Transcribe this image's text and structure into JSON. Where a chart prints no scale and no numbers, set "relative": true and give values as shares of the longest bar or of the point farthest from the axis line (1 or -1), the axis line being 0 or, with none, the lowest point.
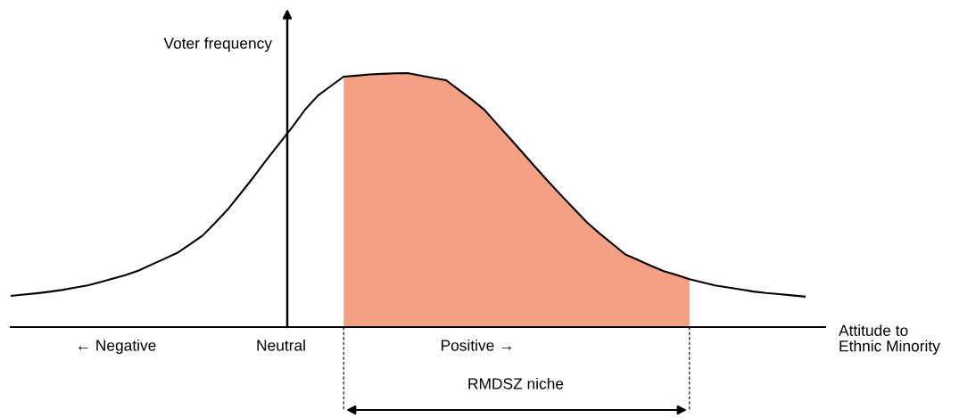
{
  "chart_data": {
    "type": "line",
    "relative": true,
    "xlabel": "Attitude to\nEthnic Minority",
    "ylabel": "Voter frequency",
    "categories": [
      null,
      null,
      null,
      null,
      null,
      null,
      null,
      null,
      null,
      null,
      null,
      null,
      null,
      null,
      null,
      null,
      null,
      null,
      null,
      null,
      null,
      null,
      null,
      null,
      null,
      null,
      null,
      null,
      null,
      null,
      null,
      null,
      null,
      null,
      null,
      null,
      null,
      null,
      null,
      null,
      null,
      null,
      null,
      null,
      null,
      null,
      null,
      null,
      null,
      null,
      null,
      null,
      null,
      null,
      null,
      null,
      null,
      null,
      null,
      null,
      null,
      null,
      null
    ],
    "series": [
      {
        "type": "area",
        "color": "#f4a084",
        "values": [
          null,
          null,
          null,
          null,
          null,
          null,
          null,
          null,
          null,
          null,
          null,
          null,
          null,
          null,
          null,
          null,
          null,
          null,
          null,
          null,
          null,
          null,
          null,
          null,
          null,
          null,
          0.986,
          0.99,
          0.995,
          0.997,
          0.999,
          1.0,
          0.99,
          0.981,
          0.972,
          0.934,
          0.896,
          0.855,
          0.798,
          0.742,
          0.685,
          0.628,
          0.572,
          0.518,
          0.465,
          0.412,
          0.368,
          0.327,
          0.286,
          0.264,
          0.241,
          0.22,
          0.205,
          0.189,
          null,
          null,
          null,
          null,
          null,
          null,
          null,
          null,
          null
        ]
      },
      {
        "color": "#000000",
        "values": [
          0.123,
          0.128,
          0.133,
          0.139,
          0.146,
          0.155,
          0.164,
          0.177,
          0.191,
          0.205,
          0.223,
          0.246,
          0.269,
          0.292,
          0.326,
          0.361,
          0.412,
          0.466,
          0.529,
          0.593,
          0.66,
          0.724,
          0.788,
          0.857,
          0.912,
          0.949,
          0.986,
          0.99,
          0.995,
          0.997,
          0.999,
          1.0,
          0.99,
          0.981,
          0.972,
          0.934,
          0.896,
          0.855,
          0.798,
          0.742,
          0.685,
          0.628,
          0.572,
          0.518,
          0.465,
          0.412,
          0.368,
          0.327,
          0.286,
          0.264,
          0.241,
          0.22,
          0.205,
          0.189,
          0.176,
          0.164,
          0.156,
          0.148,
          0.14,
          0.134,
          0.13,
          0.125,
          0.12
        ]
      }
    ],
    "annotations": [
      "← Negative",
      "Neutral",
      "Positive →",
      "RMDSZ niche"
    ],
    "grid": false,
    "legend": false
  }
}
